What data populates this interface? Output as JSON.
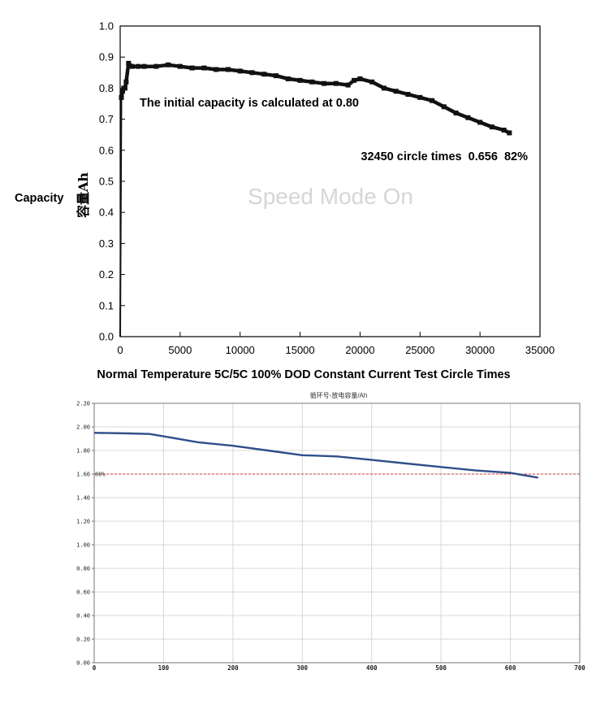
{
  "colors": {
    "top_series": "#111111",
    "bottom_series": "#2f4f8a",
    "ref_line": "#d04040",
    "grid": "#d8d8d8",
    "watermark": "#d6d6d6"
  },
  "chart_data": [
    {
      "type": "scatter",
      "xlabel": "Normal Temperature 5C/5C 100% DOD Constant Current Test Circle Times",
      "ylabel": "容量Ah",
      "ylabel_side_text": "Capacity",
      "xlim": [
        0,
        35000
      ],
      "ylim": [
        0.0,
        1.0
      ],
      "xticks": [
        "0",
        "5000",
        "10000",
        "15000",
        "20000",
        "25000",
        "30000",
        "35000"
      ],
      "yticks": [
        "0.0",
        "0.1",
        "0.2",
        "0.3",
        "0.4",
        "0.5",
        "0.6",
        "0.7",
        "0.8",
        "0.9",
        "1.0"
      ],
      "grid": false,
      "annotations": [
        "The initial capacity is calculated at 0.80",
        "32450 circle times  0.656  82%"
      ],
      "watermark": "Speed Mode On",
      "series": [
        {
          "x": [
            0,
            100,
            200,
            300,
            400,
            500,
            700,
            1000,
            1500,
            2000,
            3000,
            4000,
            5000,
            6000,
            7000,
            8000,
            9000,
            10000,
            11000,
            12000,
            13000,
            14000,
            15000,
            16000,
            17000,
            18000,
            19000,
            19500,
            20000,
            21000,
            22000,
            23000,
            24000,
            25000,
            26000,
            27000,
            28000,
            29000,
            30000,
            31000,
            32000,
            32450
          ],
          "y": [
            0.0,
            0.77,
            0.79,
            0.8,
            0.8,
            0.82,
            0.88,
            0.87,
            0.87,
            0.87,
            0.87,
            0.875,
            0.87,
            0.865,
            0.865,
            0.86,
            0.86,
            0.855,
            0.85,
            0.845,
            0.84,
            0.83,
            0.825,
            0.82,
            0.815,
            0.815,
            0.81,
            0.825,
            0.83,
            0.82,
            0.8,
            0.79,
            0.78,
            0.77,
            0.76,
            0.74,
            0.72,
            0.705,
            0.69,
            0.675,
            0.665,
            0.656
          ]
        }
      ]
    },
    {
      "type": "line",
      "title": "循环号-放电容量/Ah",
      "xlim": [
        0,
        700
      ],
      "ylim": [
        0.0,
        2.2
      ],
      "xticks": [
        "0",
        "100",
        "200",
        "300",
        "400",
        "500",
        "600",
        "700"
      ],
      "yticks": [
        "0.00",
        "0.20",
        "0.40",
        "0.60",
        "0.80",
        "1.00",
        "1.20",
        "1.40",
        "1.60",
        "1.80",
        "2.00",
        "2.20"
      ],
      "grid": true,
      "reference_line": {
        "y": 1.6,
        "label": "80%"
      },
      "series": [
        {
          "x": [
            0,
            50,
            80,
            100,
            150,
            200,
            250,
            300,
            350,
            400,
            450,
            500,
            550,
            600,
            640
          ],
          "y": [
            1.95,
            1.945,
            1.94,
            1.92,
            1.87,
            1.84,
            1.8,
            1.76,
            1.75,
            1.72,
            1.69,
            1.66,
            1.63,
            1.61,
            1.57
          ]
        }
      ]
    }
  ]
}
